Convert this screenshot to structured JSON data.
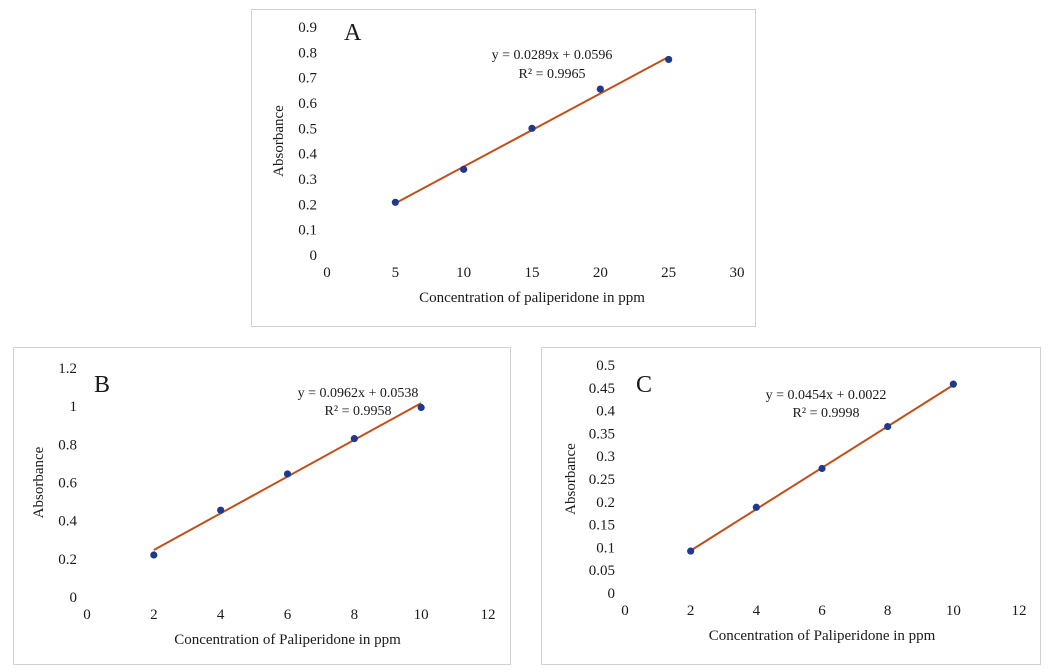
{
  "chart_data": [
    {
      "id": "A",
      "type": "scatter",
      "panel_label": "A",
      "xlabel": "Concentration of paliperidone in ppm",
      "ylabel": "Absorbance",
      "xlim": [
        0,
        30
      ],
      "ylim": [
        0,
        0.9
      ],
      "x_ticks": [
        0,
        5,
        10,
        15,
        20,
        25,
        30
      ],
      "y_ticks": [
        0,
        0.1,
        0.2,
        0.3,
        0.4,
        0.5,
        0.6,
        0.7,
        0.8,
        0.9
      ],
      "x_tick_labels": [
        "0",
        "5",
        "10",
        "15",
        "20",
        "25",
        "30"
      ],
      "y_tick_labels": [
        "0",
        "0.1",
        "0.2",
        "0.3",
        "0.4",
        "0.5",
        "0.6",
        "0.7",
        "0.8",
        "0.9"
      ],
      "grid": false,
      "points": {
        "x": [
          5,
          10,
          15,
          20,
          25
        ],
        "y": [
          0.208,
          0.338,
          0.5,
          0.655,
          0.772
        ]
      },
      "trendline": {
        "slope": 0.0289,
        "intercept": 0.0596,
        "x_range": [
          5,
          25
        ]
      },
      "equation": "y = 0.0289x + 0.0596",
      "r_squared": "R² = 0.9965",
      "colors": {
        "point": "#1f3a8c",
        "line": "#c0501a"
      }
    },
    {
      "id": "B",
      "type": "scatter",
      "panel_label": "B",
      "xlabel": "Concentration of Paliperidone in ppm",
      "ylabel": "Absorbance",
      "xlim": [
        0,
        12
      ],
      "ylim": [
        0,
        1.2
      ],
      "x_ticks": [
        0,
        2,
        4,
        6,
        8,
        10,
        12
      ],
      "y_ticks": [
        0,
        0.2,
        0.4,
        0.6,
        0.8,
        1,
        1.2
      ],
      "x_tick_labels": [
        "0",
        "2",
        "4",
        "6",
        "8",
        "10",
        "12"
      ],
      "y_tick_labels": [
        "0",
        "0.2",
        "0.4",
        "0.6",
        "0.8",
        "1",
        "1.2"
      ],
      "grid": false,
      "points": {
        "x": [
          2,
          4,
          6,
          8,
          10
        ],
        "y": [
          0.22,
          0.455,
          0.645,
          0.83,
          0.993
        ]
      },
      "trendline": {
        "slope": 0.0962,
        "intercept": 0.0538,
        "x_range": [
          2,
          10
        ]
      },
      "equation": "y = 0.0962x + 0.0538",
      "r_squared": "R² = 0.9958",
      "colors": {
        "point": "#1f3a8c",
        "line": "#c0501a"
      }
    },
    {
      "id": "C",
      "type": "scatter",
      "panel_label": "C",
      "xlabel": "Concentration of Paliperidone in ppm",
      "ylabel": "Absorbance",
      "xlim": [
        0,
        12
      ],
      "ylim": [
        0,
        0.5
      ],
      "x_ticks": [
        0,
        2,
        4,
        6,
        8,
        10,
        12
      ],
      "y_ticks": [
        0,
        0.05,
        0.1,
        0.15,
        0.2,
        0.25,
        0.3,
        0.35,
        0.4,
        0.45,
        0.5
      ],
      "x_tick_labels": [
        "0",
        "2",
        "4",
        "6",
        "8",
        "10",
        "12"
      ],
      "y_tick_labels": [
        "0",
        "0.05",
        "0.1",
        "0.15",
        "0.2",
        "0.25",
        "0.3",
        "0.35",
        "0.4",
        "0.45",
        "0.5"
      ],
      "grid": false,
      "points": {
        "x": [
          2,
          4,
          6,
          8,
          10
        ],
        "y": [
          0.092,
          0.188,
          0.273,
          0.365,
          0.458
        ]
      },
      "trendline": {
        "slope": 0.0454,
        "intercept": 0.0022,
        "x_range": [
          2,
          10
        ]
      },
      "equation": "y = 0.0454x + 0.0022",
      "r_squared": "R² = 0.9998",
      "colors": {
        "point": "#1f3a8c",
        "line": "#c0501a"
      }
    }
  ]
}
